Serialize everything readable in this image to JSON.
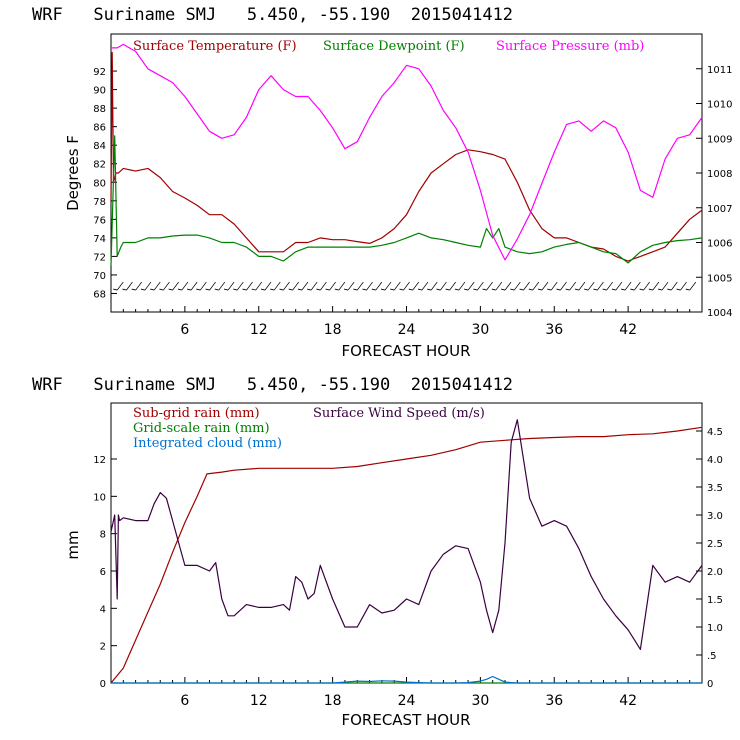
{
  "chart_data": [
    {
      "type": "line",
      "title": "WRF   Suriname SMJ   5.450, -55.190  2015041412",
      "xlabel": "FORECAST HOUR",
      "ylabel": "Degrees F",
      "xlim": [
        0,
        48
      ],
      "ylim": [
        66,
        96
      ],
      "y2lim": [
        1004,
        1012
      ],
      "xticks": [
        "6",
        "12",
        "18",
        "24",
        "30",
        "36",
        "42"
      ],
      "xtick_values": [
        6,
        12,
        18,
        24,
        30,
        36,
        42
      ],
      "yticks": [
        "68",
        "70",
        "72",
        "74",
        "76",
        "78",
        "80",
        "82",
        "84",
        "86",
        "88",
        "90",
        "92"
      ],
      "ytick_values": [
        68,
        70,
        72,
        74,
        76,
        78,
        80,
        82,
        84,
        86,
        88,
        90,
        92
      ],
      "y2ticks": [
        "1004",
        "1005",
        "1006",
        "1007",
        "1008",
        "1009",
        "1010",
        "1011"
      ],
      "y2tick_values": [
        1004,
        1005,
        1006,
        1007,
        1008,
        1009,
        1010,
        1011
      ],
      "legend_position": "top",
      "has_wind_barbs": true,
      "series": [
        {
          "name": "Surface Temperature (F)",
          "color": "#a00000",
          "axis": "left",
          "x": [
            0,
            0.1,
            0.2,
            0.4,
            0.6,
            1,
            2,
            3,
            4,
            5,
            6,
            7,
            8,
            9,
            10,
            11,
            12,
            13,
            14,
            15,
            16,
            17,
            18,
            19,
            20,
            21,
            22,
            23,
            24,
            25,
            26,
            27,
            28,
            29,
            30,
            31,
            32,
            33,
            34,
            35,
            36,
            37,
            38,
            39,
            40,
            41,
            42,
            43,
            44,
            45,
            46,
            47,
            48
          ],
          "y": [
            78,
            94,
            80,
            81,
            81,
            81.5,
            81.2,
            81.5,
            80.5,
            79,
            78.3,
            77.5,
            76.5,
            76.5,
            75.5,
            74,
            72.5,
            72.5,
            72.5,
            73.5,
            73.5,
            74,
            73.8,
            73.8,
            73.6,
            73.4,
            74,
            75,
            76.5,
            79,
            81,
            82,
            83,
            83.5,
            83.3,
            83,
            82.5,
            80,
            77,
            75,
            74,
            74,
            73.5,
            73,
            72.8,
            72,
            71.5,
            72,
            72.5,
            73,
            74.5,
            76,
            77
          ]
        },
        {
          "name": "Surface Dewpoint (F)",
          "color": "#008000",
          "axis": "left",
          "x": [
            0,
            0.3,
            0.5,
            0.8,
            1,
            2,
            3,
            4,
            5,
            6,
            7,
            8,
            9,
            10,
            11,
            12,
            13,
            14,
            15,
            16,
            17,
            18,
            19,
            20,
            21,
            22,
            23,
            24,
            25,
            26,
            27,
            28,
            29,
            30,
            30.5,
            31,
            31.5,
            32,
            33,
            34,
            35,
            36,
            37,
            38,
            39,
            40,
            41,
            42,
            43,
            44,
            45,
            46,
            47,
            48
          ],
          "y": [
            71,
            85,
            72,
            73,
            73.5,
            73.5,
            74,
            74,
            74.2,
            74.3,
            74.3,
            74,
            73.5,
            73.5,
            73,
            72,
            72,
            71.5,
            72.5,
            73,
            73,
            73,
            73,
            73,
            73,
            73.2,
            73.5,
            74,
            74.5,
            74,
            73.8,
            73.5,
            73.2,
            73,
            75,
            74,
            75,
            73,
            72.5,
            72.3,
            72.5,
            73,
            73.3,
            73.5,
            73,
            72.5,
            72.3,
            71.3,
            72.5,
            73.2,
            73.5,
            73.7,
            73.8,
            74
          ]
        },
        {
          "name": "Surface Pressure (mb)",
          "color": "#ff00ff",
          "axis": "right",
          "x": [
            0,
            0.5,
            1,
            2,
            3,
            4,
            5,
            6,
            7,
            8,
            9,
            10,
            11,
            12,
            13,
            14,
            15,
            16,
            17,
            18,
            19,
            20,
            21,
            22,
            23,
            24,
            25,
            26,
            27,
            28,
            29,
            30,
            31,
            32,
            33,
            34,
            35,
            36,
            37,
            38,
            39,
            40,
            41,
            42,
            43,
            44,
            45,
            46,
            47,
            48
          ],
          "y": [
            1011.6,
            1011.6,
            1011.7,
            1011.5,
            1011,
            1010.8,
            1010.6,
            1010.2,
            1009.7,
            1009.2,
            1009,
            1009.1,
            1009.6,
            1010.4,
            1010.8,
            1010.4,
            1010.2,
            1010.2,
            1009.8,
            1009.3,
            1008.7,
            1008.9,
            1009.6,
            1010.2,
            1010.6,
            1011.1,
            1011.0,
            1010.5,
            1009.8,
            1009.3,
            1008.6,
            1007.5,
            1006.2,
            1005.5,
            1006.1,
            1006.8,
            1007.7,
            1008.6,
            1009.4,
            1009.5,
            1009.2,
            1009.5,
            1009.3,
            1008.6,
            1007.5,
            1007.3,
            1008.4,
            1009.0,
            1009.1,
            1009.6
          ]
        }
      ]
    },
    {
      "type": "line",
      "title": "WRF   Suriname SMJ   5.450, -55.190  2015041412",
      "xlabel": "FORECAST HOUR",
      "ylabel": "mm",
      "xlim": [
        0,
        48
      ],
      "ylim": [
        0,
        15
      ],
      "y2lim": [
        0,
        5
      ],
      "xticks": [
        "6",
        "12",
        "18",
        "24",
        "30",
        "36",
        "42"
      ],
      "xtick_values": [
        6,
        12,
        18,
        24,
        30,
        36,
        42
      ],
      "yticks": [
        "0",
        "2",
        "4",
        "6",
        "8",
        "10",
        "12"
      ],
      "ytick_values": [
        0,
        2,
        4,
        6,
        8,
        10,
        12
      ],
      "y2ticks": [
        "0",
        ".5",
        "1.0",
        "1.5",
        "2.0",
        "2.5",
        "3.0",
        "3.5",
        "4.0",
        "4.5"
      ],
      "y2tick_values": [
        0,
        0.5,
        1.0,
        1.5,
        2.0,
        2.5,
        3.0,
        3.5,
        4.0,
        4.5
      ],
      "legend_position": "top-left",
      "series": [
        {
          "name": "Sub-grid rain (mm)",
          "color": "#a00000",
          "axis": "left",
          "x": [
            0,
            1,
            2,
            3,
            4,
            5,
            6,
            7,
            7.8,
            9,
            10,
            12,
            14,
            16,
            18,
            20,
            22,
            24,
            26,
            28,
            30,
            32,
            34,
            36,
            38,
            40,
            42,
            44,
            46,
            48
          ],
          "y": [
            0,
            0.8,
            2.3,
            3.8,
            5.3,
            7,
            8.6,
            10,
            11.2,
            11.3,
            11.4,
            11.5,
            11.5,
            11.5,
            11.5,
            11.6,
            11.8,
            12,
            12.2,
            12.5,
            12.9,
            13.0,
            13.1,
            13.15,
            13.2,
            13.2,
            13.3,
            13.35,
            13.5,
            13.7
          ]
        },
        {
          "name": "Grid-scale rain (mm)",
          "color": "#008000",
          "axis": "left",
          "x": [
            0,
            48
          ],
          "y": [
            0,
            0
          ]
        },
        {
          "name": "Integrated cloud (mm)",
          "color": "#0070d0",
          "axis": "left",
          "x": [
            0,
            18,
            19,
            20,
            21,
            22,
            23,
            24,
            25,
            26,
            27,
            28,
            29,
            30,
            30.5,
            31,
            31.5,
            32,
            33,
            48
          ],
          "y": [
            0,
            0,
            0.05,
            0.1,
            0.08,
            0.12,
            0.1,
            0.05,
            0.02,
            0,
            0,
            0,
            0.02,
            0.1,
            0.2,
            0.35,
            0.2,
            0.05,
            0,
            0
          ]
        },
        {
          "name": "Surface Wind Speed (m/s)",
          "color": "#3a0040",
          "axis": "right",
          "x": [
            0,
            0.3,
            0.5,
            0.6,
            0.7,
            1,
            2,
            3,
            3.5,
            4,
            4.5,
            5,
            5.5,
            6,
            7,
            8,
            8.5,
            9,
            9.5,
            10,
            11,
            12,
            13,
            14,
            14.5,
            15,
            15.5,
            16,
            16.5,
            17,
            18,
            19,
            20,
            21,
            22,
            23,
            24,
            25,
            26,
            27,
            28,
            29,
            30,
            30.5,
            31,
            31.5,
            32,
            32.5,
            33,
            34,
            35,
            36,
            37,
            38,
            39,
            40,
            41,
            42,
            43,
            44,
            45,
            46,
            47,
            48
          ],
          "y": [
            2.7,
            3.0,
            1.5,
            3.0,
            2.9,
            2.95,
            2.9,
            2.9,
            3.2,
            3.4,
            3.3,
            2.9,
            2.5,
            2.1,
            2.1,
            2.0,
            2.15,
            1.5,
            1.2,
            1.2,
            1.4,
            1.35,
            1.35,
            1.4,
            1.3,
            1.9,
            1.8,
            1.5,
            1.6,
            2.1,
            1.5,
            1.0,
            1.0,
            1.4,
            1.25,
            1.3,
            1.5,
            1.4,
            2.0,
            2.3,
            2.45,
            2.4,
            1.8,
            1.3,
            0.9,
            1.3,
            2.5,
            4.3,
            4.7,
            3.3,
            2.8,
            2.9,
            2.8,
            2.4,
            1.9,
            1.5,
            1.2,
            0.95,
            0.6,
            2.1,
            1.8,
            1.9,
            1.8,
            2.1
          ]
        }
      ]
    }
  ]
}
